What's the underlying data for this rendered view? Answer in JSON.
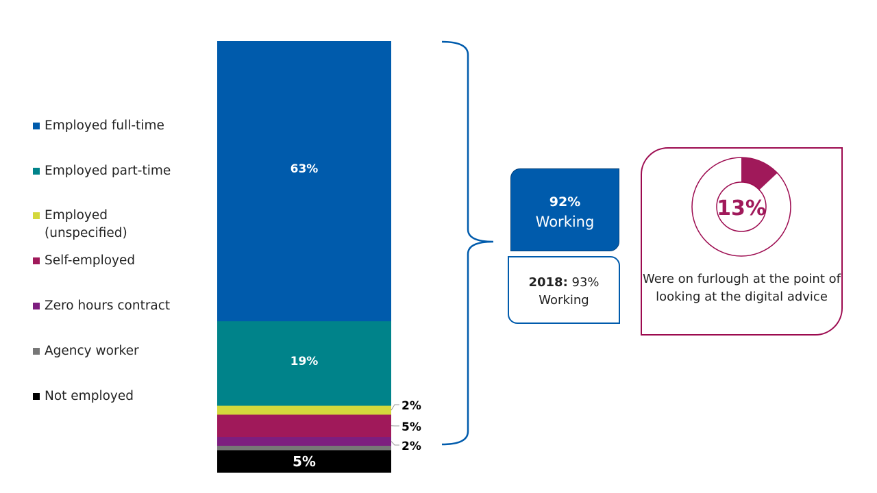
{
  "chart_data": {
    "type": "bar",
    "subtype": "stacked-100",
    "categories": [
      "Employed full-time",
      "Employed part-time",
      "Employed (unspecified)",
      "Self-employed",
      "Zero hours contract",
      "Agency worker",
      "Not employed"
    ],
    "values": [
      63,
      19,
      2,
      5,
      2,
      1,
      5
    ],
    "labels": [
      "63%",
      "19%",
      "2%",
      "5%",
      "2%",
      "",
      "5%"
    ],
    "colors": [
      "#005bac",
      "#00838a",
      "#d4d83c",
      "#a0195a",
      "#7d1e7f",
      "#777777",
      "#000000"
    ],
    "legend_position": "left"
  },
  "legend": [
    {
      "label": "Employed full-time",
      "color": "#005bac"
    },
    {
      "label": "Employed part-time",
      "color": "#00838a"
    },
    {
      "label": "Employed (unspecified)",
      "color": "#d4d83c"
    },
    {
      "label": "Self-employed",
      "color": "#a0195a"
    },
    {
      "label": "Zero hours contract",
      "color": "#7d1e7f"
    },
    {
      "label": "Agency worker",
      "color": "#777777"
    },
    {
      "label": "Not employed",
      "color": "#000000"
    }
  ],
  "working": {
    "value": "92%",
    "label": "Working"
  },
  "previous": {
    "year": "2018:",
    "value": "93%",
    "label": "Working"
  },
  "furlough": {
    "value": "13%",
    "percent": 13,
    "text": "Were on furlough at the point of looking at the digital advice",
    "color": "#9c0a4f"
  }
}
